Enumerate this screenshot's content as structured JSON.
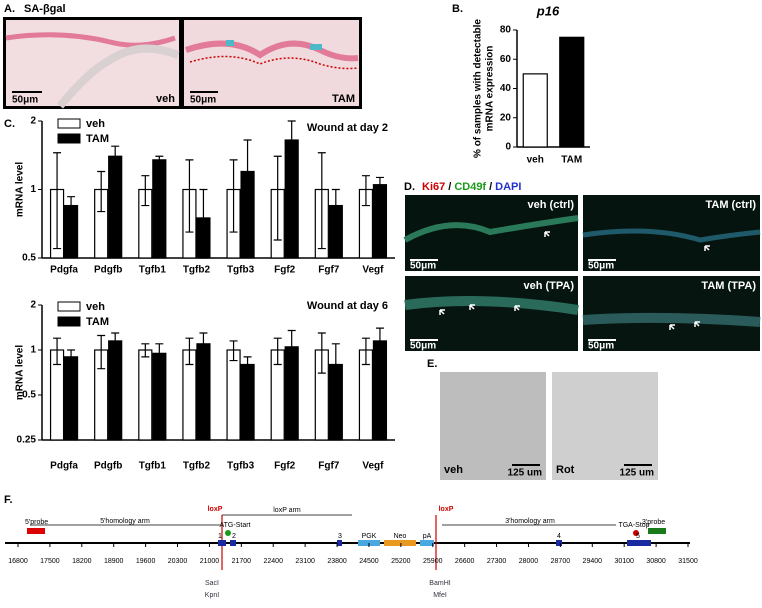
{
  "panel_labels": [
    "A.",
    "B.",
    "C.",
    "D.",
    "E.",
    "F."
  ],
  "panel_a": {
    "title": "SA-βgal",
    "scale_bar": "50μm",
    "conditions": [
      "veh",
      "TAM"
    ]
  },
  "chart_data": [
    {
      "type": "bar",
      "title": "p16",
      "ylabel": [
        "% of samples with detectable",
        "mRNA expression"
      ],
      "categories": [
        "veh",
        "TAM"
      ],
      "values": [
        50,
        75
      ],
      "colors": [
        "#ffffff",
        "#000000"
      ],
      "ylim": [
        0,
        80
      ],
      "yticks": [
        0,
        20,
        40,
        60,
        80
      ],
      "log_scale": false
    },
    {
      "type": "bar",
      "title": "Wound at day 2",
      "ylabel": [
        "mRNA level"
      ],
      "log_scale": true,
      "categories": [
        "Pdgfa",
        "Pdgfb",
        "Tgfb1",
        "Tgfb2",
        "Tgfb3",
        "Fgf2",
        "Fgf7",
        "Vegf"
      ],
      "series": [
        {
          "name": "veh",
          "color": "#ffffff",
          "values": [
            1,
            1,
            1,
            1,
            1,
            1,
            1,
            1
          ],
          "errors": [
            0.45,
            0.2,
            0.15,
            0.35,
            0.35,
            0.4,
            0.45,
            0.15
          ]
        },
        {
          "name": "TAM",
          "color": "#000000",
          "values": [
            0.85,
            1.4,
            1.35,
            0.75,
            1.2,
            1.65,
            0.85,
            1.05
          ],
          "errors": [
            0.08,
            0.15,
            0.05,
            0.25,
            0.45,
            0.35,
            0.15,
            0.08
          ]
        }
      ],
      "ylim": [
        0.5,
        2
      ],
      "yticks": [
        0.5,
        1,
        2
      ],
      "legend": "upper left"
    },
    {
      "type": "bar",
      "title": "Wound at day 6",
      "ylabel": [
        "mRNA level"
      ],
      "log_scale": true,
      "categories": [
        "Pdgfa",
        "Pdgfb",
        "Tgfb1",
        "Tgfb2",
        "Tgfb3",
        "Fgf2",
        "Fgf7",
        "Vegf"
      ],
      "series": [
        {
          "name": "veh",
          "color": "#ffffff",
          "values": [
            1,
            1,
            1,
            1,
            1,
            1,
            1,
            1
          ],
          "errors": [
            0.2,
            0.25,
            0.1,
            0.2,
            0.15,
            0.2,
            0.3,
            0.2
          ]
        },
        {
          "name": "TAM",
          "color": "#000000",
          "values": [
            0.9,
            1.15,
            0.95,
            1.1,
            0.8,
            1.05,
            0.8,
            1.15
          ],
          "errors": [
            0.1,
            0.15,
            0.15,
            0.2,
            0.1,
            0.3,
            0.3,
            0.25
          ]
        }
      ],
      "ylim": [
        0.25,
        2
      ],
      "yticks": [
        0.25,
        0.5,
        1,
        2
      ],
      "legend": "upper left"
    }
  ],
  "panel_d": {
    "stains": [
      "Ki67",
      "CD49f",
      "DAPI"
    ],
    "separator": "/",
    "images": [
      "veh (ctrl)",
      "TAM (ctrl)",
      "veh (TPA)",
      "TAM (TPA)"
    ],
    "scale_bar": "50μm"
  },
  "panel_e": {
    "conditions": [
      "veh",
      "Rot"
    ],
    "scale_bar": "125 um"
  },
  "panel_f": {
    "scale": [
      16800,
      17500,
      18200,
      18900,
      19600,
      20300,
      21000,
      21700,
      22400,
      23100,
      23800,
      24500,
      25200,
      25900,
      26600,
      27300,
      28000,
      28700,
      29400,
      30100,
      30800,
      31500
    ],
    "probe5": "5'probe",
    "arm5": "5'homology arm",
    "loxp": "loxP",
    "atg": "ATG-Start",
    "loxp_arm": "loxP arm",
    "pgk": "PGK",
    "neo": "Neo",
    "pa": "pA",
    "arm3": "3'homology arm",
    "tga": "TGA-Stop",
    "probe3": "3'probe",
    "exons": [
      "1",
      "2",
      "3",
      "4",
      "5"
    ],
    "sites": [
      "SacI",
      "KpnI",
      "BamHI",
      "MfeI"
    ]
  }
}
